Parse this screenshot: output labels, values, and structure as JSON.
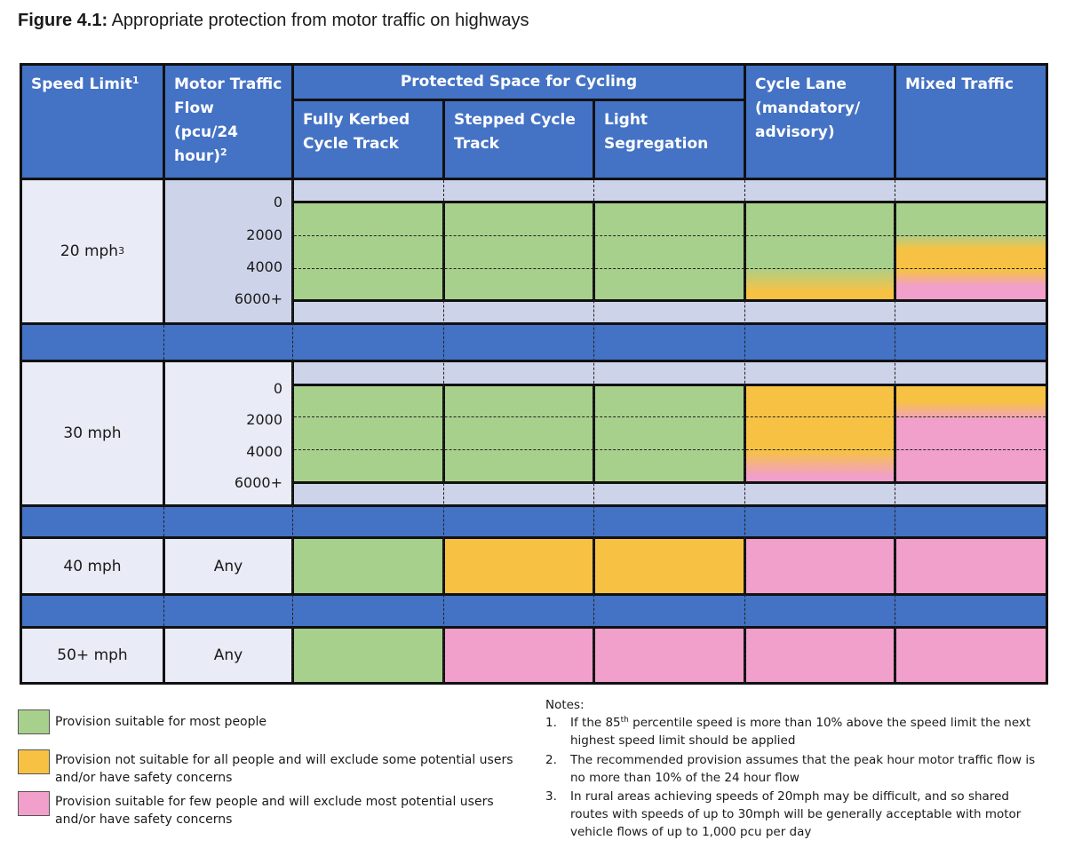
{
  "figure": {
    "label": "Figure 4.1:",
    "title": "Appropriate protection from motor traffic on highways"
  },
  "header": {
    "speed_limit": "Speed Limit",
    "speed_limit_sup": "1",
    "motor_traffic_flow": "Motor Traffic Flow (pcu/24 hour)",
    "motor_traffic_flow_sup": "2",
    "protected_space": "Protected Space for Cycling",
    "fully_kerbed": "Fully Kerbed Cycle Track",
    "stepped": "Stepped Cycle Track",
    "light_segregation": "Light Segregation",
    "cycle_lane": "Cycle Lane (mandatory/ advisory)",
    "mixed_traffic": "Mixed Traffic"
  },
  "flow_ticks": [
    "0",
    "2000",
    "4000",
    "6000+"
  ],
  "rows": [
    {
      "speed": "20 mph",
      "speed_sup": "3",
      "flow": "",
      "cells": [
        "green",
        "green",
        "green",
        "green-to-orange",
        "green-orange-pink"
      ]
    },
    {
      "speed": "30 mph",
      "speed_sup": "",
      "flow": "",
      "cells": [
        "green",
        "green",
        "green",
        "orange-to-pink",
        "orange-to-pink"
      ]
    },
    {
      "speed": "40 mph",
      "speed_sup": "",
      "flow": "Any",
      "cells": [
        "green",
        "orange",
        "orange",
        "pink",
        "pink"
      ]
    },
    {
      "speed": "50+ mph",
      "speed_sup": "",
      "flow": "Any",
      "cells": [
        "green",
        "pink",
        "pink",
        "pink",
        "pink"
      ]
    }
  ],
  "colors": {
    "header_blue": "#4472c4",
    "green": "#a8d08d",
    "orange": "#f7c244",
    "pink": "#f19fcb",
    "label_bg": "#e9ebf6",
    "flow_bg": "#cdd3e8"
  },
  "legend": [
    {
      "color": "green",
      "text": "Provision suitable for most people"
    },
    {
      "color": "orange",
      "text": "Provision not suitable for all people and will exclude some potential users and/or have safety concerns"
    },
    {
      "color": "pink",
      "text": "Provision suitable for few people and will exclude most potential users and/or have safety concerns"
    }
  ],
  "notes": {
    "heading": "Notes:",
    "items": [
      {
        "num": "1.",
        "pre": "If the 85",
        "sup": "th",
        "post": " percentile speed is more than 10% above the speed limit the next highest speed limit should be applied"
      },
      {
        "num": "2.",
        "pre": "The recommended provision assumes that the peak hour motor traffic flow is no more than 10% of the 24 hour flow",
        "sup": "",
        "post": ""
      },
      {
        "num": "3.",
        "pre": "In rural areas achieving speeds of 20mph may be difficult, and so shared routes with speeds of up to 30mph will be generally acceptable with motor vehicle flows of up to 1,000 pcu per day",
        "sup": "",
        "post": ""
      }
    ]
  }
}
